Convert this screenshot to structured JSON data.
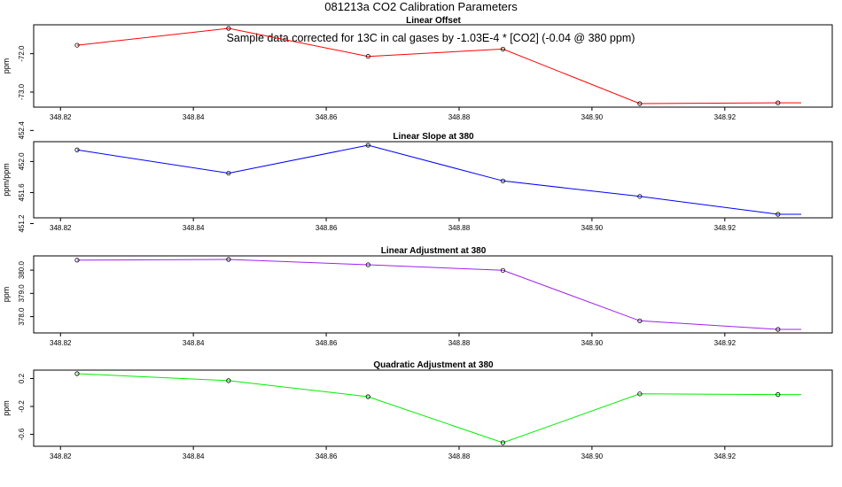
{
  "figure": {
    "title": "081213a   CO2 Calibration Parameters",
    "note": "Sample data corrected for 13C in cal gases by -1.03E-4 * [CO2] (-0.04 @ 380 ppm)"
  },
  "chart_data": [
    {
      "type": "line",
      "title": "Linear Offset",
      "ylabel": "ppm",
      "color": "#ff0000",
      "x": [
        348.8225,
        348.8453,
        348.8663,
        348.8866,
        348.9072,
        348.928,
        348.9315
      ],
      "values": [
        -71.78,
        -71.34,
        -72.07,
        -71.88,
        -73.3,
        -73.28,
        -73.28
      ],
      "markers": [
        true,
        true,
        true,
        true,
        true,
        true,
        false
      ],
      "xlim": [
        348.8193,
        348.9315
      ],
      "ylim": [
        -73.3,
        -71.34
      ],
      "xticks": [
        348.82,
        348.84,
        348.86,
        348.88,
        348.9,
        348.92
      ],
      "xtick_labels": [
        "348.82",
        "348.84",
        "348.86",
        "348.88",
        "348.90",
        "348.92"
      ],
      "yticks": [
        -72.0,
        -73.0
      ],
      "ytick_labels": [
        "-72.0",
        "-73.0"
      ]
    },
    {
      "type": "line",
      "title": "Linear Slope at 380",
      "ylabel": "ppm/ppm",
      "color": "#0000ff",
      "x": [
        348.8225,
        348.8453,
        348.8663,
        348.8866,
        348.9072,
        348.928,
        348.9315
      ],
      "values": [
        452.15,
        451.85,
        452.21,
        451.75,
        451.55,
        451.32,
        451.32
      ],
      "markers": [
        true,
        true,
        true,
        true,
        true,
        true,
        false
      ],
      "xlim": [
        348.8193,
        348.9315
      ],
      "ylim": [
        451.32,
        452.21
      ],
      "xticks": [
        348.82,
        348.84,
        348.86,
        348.88,
        348.9,
        348.92
      ],
      "xtick_labels": [
        "348.82",
        "348.84",
        "348.86",
        "348.88",
        "348.90",
        "348.92"
      ],
      "yticks": [
        452.4,
        452.0,
        451.6,
        451.2
      ],
      "ytick_labels": [
        "452.4",
        "452.0",
        "451.6",
        "451.2"
      ]
    },
    {
      "type": "line",
      "title": "Linear Adjustment at 380",
      "ylabel": "ppm",
      "color": "#a020f0",
      "x": [
        348.8225,
        348.8453,
        348.8663,
        348.8866,
        348.9072,
        348.928,
        348.9315
      ],
      "values": [
        380.43,
        380.46,
        380.23,
        379.99,
        377.82,
        377.45,
        377.45
      ],
      "markers": [
        true,
        true,
        true,
        true,
        true,
        true,
        false
      ],
      "xlim": [
        348.8193,
        348.9315
      ],
      "ylim": [
        377.45,
        380.46
      ],
      "xticks": [
        348.82,
        348.84,
        348.86,
        348.88,
        348.9,
        348.92
      ],
      "xtick_labels": [
        "348.82",
        "348.84",
        "348.86",
        "348.88",
        "348.90",
        "348.92"
      ],
      "yticks": [
        380.0,
        379.0,
        378.0
      ],
      "ytick_labels": [
        "380.0",
        "379.0",
        "378.0"
      ]
    },
    {
      "type": "line",
      "title": "Quadratic Adjustment at 380",
      "ylabel": "ppm",
      "color": "#00ee00",
      "x": [
        348.8225,
        348.8453,
        348.8663,
        348.8866,
        348.9072,
        348.928,
        348.9315
      ],
      "values": [
        0.27,
        0.17,
        -0.06,
        -0.72,
        -0.02,
        -0.03,
        -0.03
      ],
      "markers": [
        true,
        true,
        true,
        true,
        true,
        true,
        false
      ],
      "xlim": [
        348.8193,
        348.9315
      ],
      "ylim": [
        -0.72,
        0.27
      ],
      "xticks": [
        348.82,
        348.84,
        348.86,
        348.88,
        348.9,
        348.92
      ],
      "xtick_labels": [
        "348.82",
        "348.84",
        "348.86",
        "348.88",
        "348.90",
        "348.92"
      ],
      "yticks": [
        0.2,
        -0.2,
        -0.6
      ],
      "ytick_labels": [
        "0.2",
        "-0.2",
        "-0.6"
      ]
    }
  ]
}
